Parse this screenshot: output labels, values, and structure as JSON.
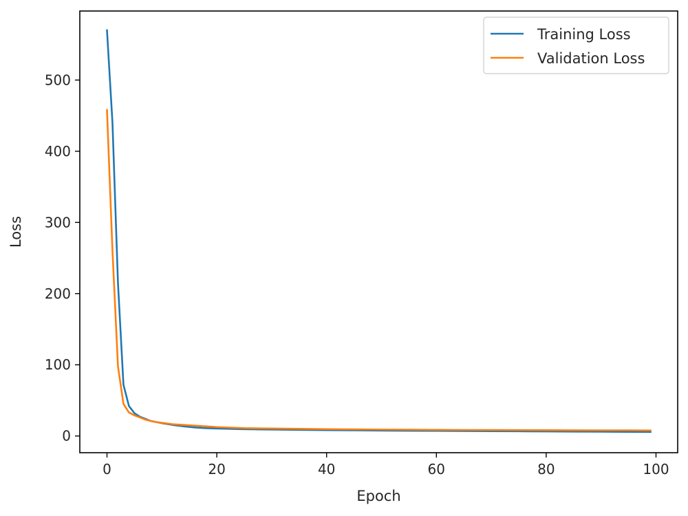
{
  "chart_data": {
    "type": "line",
    "title": "",
    "xlabel": "Epoch",
    "ylabel": "Loss",
    "xlim": [
      -4.95,
      103.95
    ],
    "ylim": [
      -23.5,
      597
    ],
    "xticks": [
      0,
      20,
      40,
      60,
      80,
      100
    ],
    "yticks": [
      0,
      100,
      200,
      300,
      400,
      500
    ],
    "grid": false,
    "legend_position": "upper right",
    "series": [
      {
        "name": "Training Loss",
        "color": "#1f77b4",
        "x": [
          0,
          1,
          2,
          3,
          4,
          5,
          6,
          7,
          8,
          9,
          10,
          12,
          14,
          16,
          18,
          20,
          25,
          30,
          35,
          40,
          45,
          50,
          55,
          60,
          65,
          70,
          75,
          80,
          85,
          90,
          95,
          99
        ],
        "y": [
          570,
          440,
          215,
          72,
          42,
          32,
          27,
          24,
          21,
          19.5,
          18,
          15.5,
          13.5,
          12,
          11,
          10.5,
          9.5,
          9,
          8.6,
          8.2,
          7.9,
          7.6,
          7.4,
          7.2,
          7,
          6.8,
          6.6,
          6.4,
          6.2,
          6,
          5.8,
          5.7
        ]
      },
      {
        "name": "Validation Loss",
        "color": "#ff7f0e",
        "x": [
          0,
          1,
          2,
          3,
          4,
          5,
          6,
          7,
          8,
          9,
          10,
          12,
          14,
          16,
          18,
          20,
          25,
          30,
          35,
          40,
          45,
          50,
          55,
          60,
          65,
          70,
          75,
          80,
          85,
          90,
          95,
          99
        ],
        "y": [
          458,
          260,
          98,
          45,
          33,
          29,
          26,
          23,
          21,
          19.5,
          18.5,
          16.5,
          15.5,
          14.5,
          13.5,
          12.5,
          11,
          10.5,
          10,
          9.6,
          9.3,
          9,
          8.8,
          8.6,
          8.4,
          8.3,
          8.2,
          8.1,
          8,
          7.9,
          7.9,
          7.8
        ]
      }
    ]
  }
}
